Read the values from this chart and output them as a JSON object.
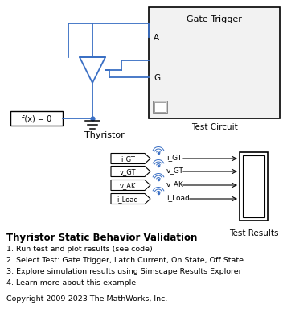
{
  "title": "Thyristor Static Behavior Validation",
  "items": [
    "1. Run test and plot results (see code)",
    "2. Select Test: Gate Trigger, Latch Current, On State, Off State",
    "3. Explore simulation results using Simscape Results Explorer",
    "4. Learn more about this example"
  ],
  "copyright": "Copyright 2009-2023 The MathWorks, Inc.",
  "gate_trigger_label": "Gate Trigger",
  "test_circuit_label": "Test Circuit",
  "thyristor_label": "Thyristor",
  "test_results_label": "Test Results",
  "signals": [
    "i_GT",
    "v_GT",
    "v_AK",
    "i_Load"
  ],
  "bg_color": "#ffffff",
  "line_color": "#3a6fc4",
  "box_facecolor": "#f2f2f2"
}
